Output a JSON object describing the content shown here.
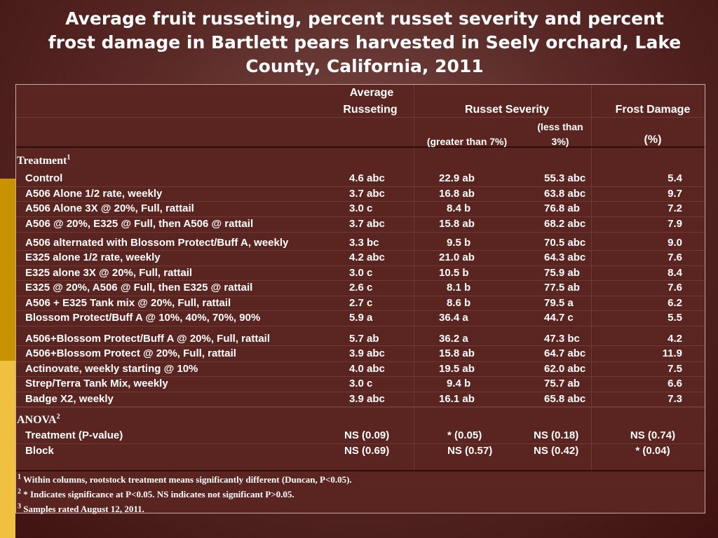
{
  "title": "Average fruit russeting, percent russet severity and percent frost damage in Bartlett pears harvested in Seely orchard, Lake County, California, 2011",
  "headers": {
    "avg_russeting_1": "Average",
    "avg_russeting_2": "Russeting",
    "russet_severity": "Russet Severity",
    "frost_damage": "Frost Damage",
    "greater_than": "(greater than 7%)",
    "less_than_1": "(less than",
    "less_than_2": "3%)",
    "percent": "(%)",
    "treatment": "Treatment",
    "treatment_sup": "1",
    "anova": "ANOVA",
    "anova_sup": "2"
  },
  "rows": [
    {
      "name": "Control",
      "avg": "4.6 abc",
      "gt7": "22.9 ab",
      "lt3": "55.3 abc",
      "frost": "5.4"
    },
    {
      "name": "A506 Alone 1/2 rate, weekly",
      "avg": "3.7 abc",
      "gt7": "16.8 ab",
      "lt3": "63.8 abc",
      "frost": "9.7"
    },
    {
      "name": "A506 Alone 3X @ 20%, Full, rattail",
      "avg": "3.0 c",
      "gt7": "8.4 b",
      "lt3": "76.8 ab",
      "frost": "7.2"
    },
    {
      "name": "A506 @ 20%, E325 @ Full, then A506 @ rattail",
      "avg": "3.7 abc",
      "gt7": "15.8 ab",
      "lt3": "68.2 abc",
      "frost": "7.9"
    },
    {
      "name": "A506 alternated with Blossom Protect/Buff A, weekly",
      "avg": "3.3 bc",
      "gt7": "9.5 b",
      "lt3": "70.5 abc",
      "frost": "9.0"
    },
    {
      "name": "E325 alone 1/2 rate, weekly",
      "avg": "4.2 abc",
      "gt7": "21.0 ab",
      "lt3": "64.3 abc",
      "frost": "7.6"
    },
    {
      "name": "E325 alone 3X @ 20%, Full, rattail",
      "avg": "3.0 c",
      "gt7": "10.5 b",
      "lt3": "75.9 ab",
      "frost": "8.4"
    },
    {
      "name": "E325 @ 20%, A506 @ Full, then E325 @ rattail",
      "avg": "2.6 c",
      "gt7": "8.1 b",
      "lt3": "77.5 ab",
      "frost": "7.6"
    },
    {
      "name": "A506 + E325 Tank mix @ 20%, Full, rattail",
      "avg": "2.7 c",
      "gt7": "8.6 b",
      "lt3": "79.5 a",
      "frost": "6.2"
    },
    {
      "name": "Blossom Protect/Buff A @ 10%, 40%, 70%, 90%",
      "avg": "5.9 a",
      "gt7": "36.4 a",
      "lt3": "44.7 c",
      "frost": "5.5"
    },
    {
      "name": "A506+Blossom Protect/Buff A @ 20%, Full, rattail",
      "avg": "5.7 ab",
      "gt7": "36.2 a",
      "lt3": "47.3 bc",
      "frost": "4.2"
    },
    {
      "name": "A506+Blossom Protect @ 20%, Full, rattail",
      "avg": "3.9 abc",
      "gt7": "15.8 ab",
      "lt3": "64.7 abc",
      "frost": "11.9"
    },
    {
      "name": "Actinovate, weekly starting @ 10%",
      "avg": "4.0 abc",
      "gt7": "19.5 ab",
      "lt3": "62.0 abc",
      "frost": "7.5"
    },
    {
      "name": "Strep/Terra Tank Mix, weekly",
      "avg": "3.0 c",
      "gt7": "9.4 b",
      "lt3": "75.7 ab",
      "frost": "6.6"
    },
    {
      "name": "Badge X2, weekly",
      "avg": "3.9 abc",
      "gt7": "16.1 ab",
      "lt3": "65.8 abc",
      "frost": "7.3"
    }
  ],
  "anova_rows": [
    {
      "name": "Treatment (P-value)",
      "avg": "NS (0.09)",
      "gt7": "* (0.05)",
      "lt3": "NS (0.18)",
      "frost": "NS (0.74)"
    },
    {
      "name": "Block",
      "avg": "NS (0.69)",
      "gt7": "NS (0.57)",
      "lt3": "NS (0.42)",
      "frost": "* (0.04)"
    }
  ],
  "footnotes": [
    {
      "sup": "1",
      "text": " Within columns, rootstock treatment means significantly different (Duncan, P<0.05)."
    },
    {
      "sup": "2",
      "text": " * Indicates significance at P<0.05. NS indicates not significant P>0.05."
    },
    {
      "sup": "3",
      "text": " Samples rated August 12, 2011."
    }
  ]
}
